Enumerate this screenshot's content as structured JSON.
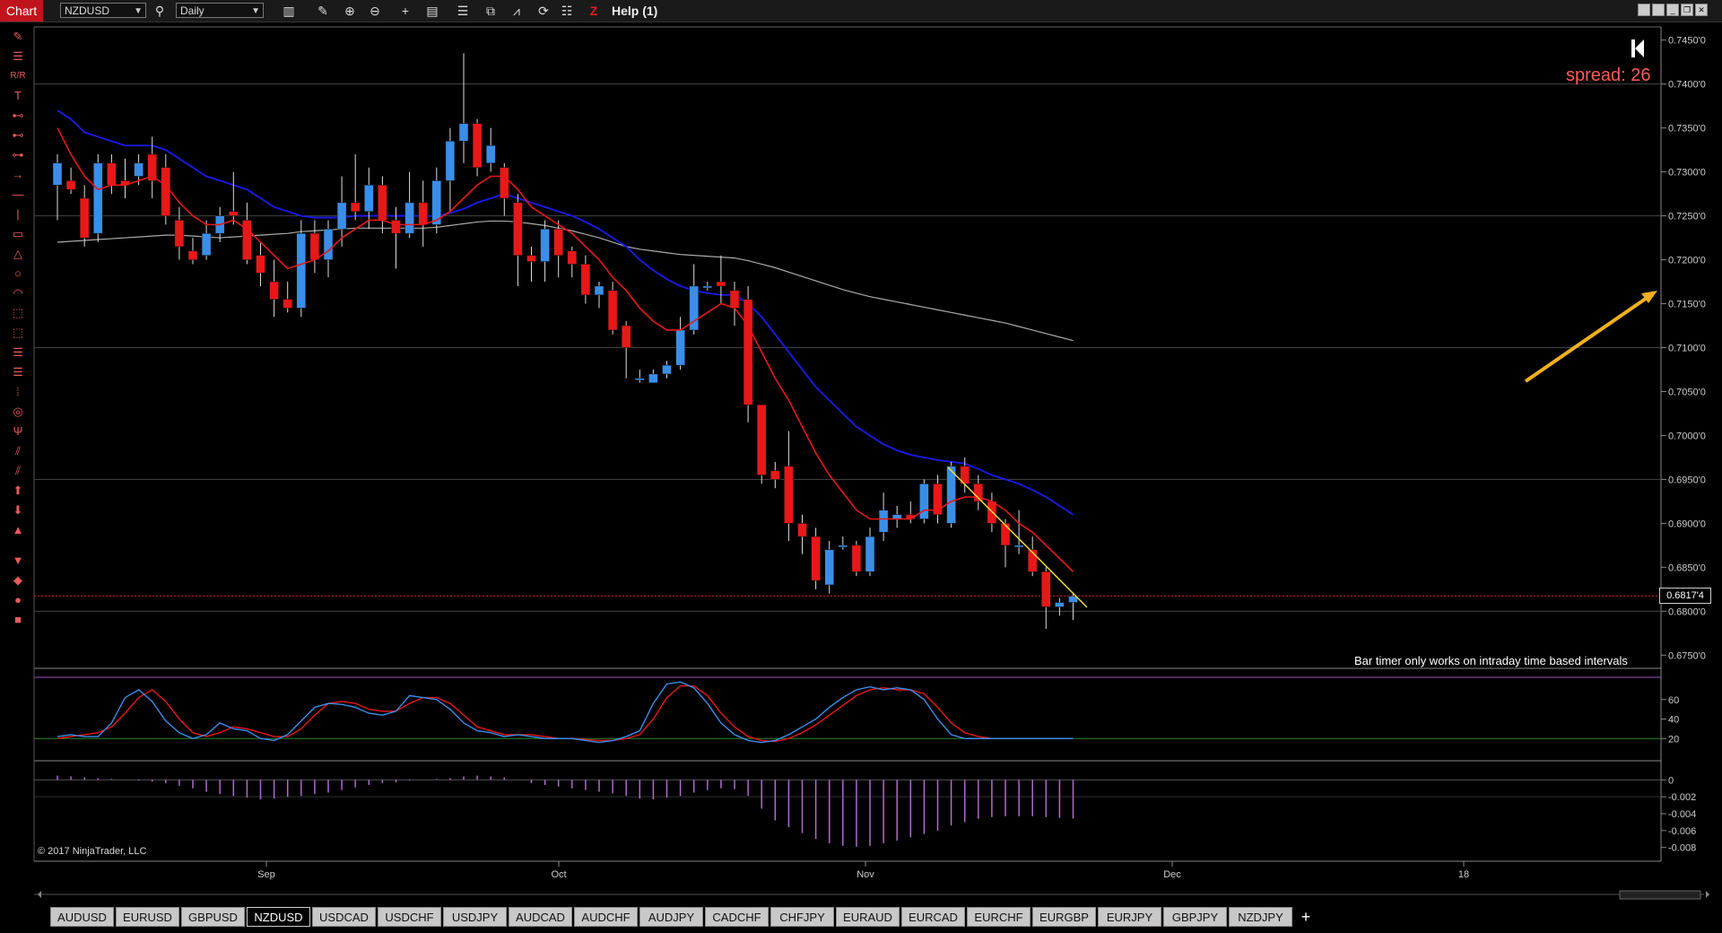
{
  "toolbar": {
    "chart_label": "Chart",
    "instrument": "NZDUSD",
    "interval": "Daily",
    "help_label": "Help (1)"
  },
  "overlay": {
    "spread": "spread: 26",
    "bar_timer_message": "Bar timer only works on intraday time based intervals",
    "copyright": "© 2017 NinjaTrader, LLC",
    "last_price": "0.6817'4"
  },
  "price_axis_labels": [
    "0.7450'0",
    "0.7400'0",
    "0.7350'0",
    "0.7300'0",
    "0.7250'0",
    "0.7200'0",
    "0.7150'0",
    "0.7100'0",
    "0.7050'0",
    "0.7000'0",
    "0.6950'0",
    "0.6900'0",
    "0.6850'0",
    "0.6800'0",
    "0.6750'0"
  ],
  "stoch_axis_labels": [
    "60",
    "40",
    "20"
  ],
  "macd_axis_labels": [
    "0",
    "-0.002",
    "-0.004",
    "-0.006",
    "-0.008"
  ],
  "time_axis_labels": [
    "Sep",
    "Oct",
    "Nov",
    "Dec",
    "18"
  ],
  "tabs": [
    "AUDUSD",
    "EURUSD",
    "GBPUSD",
    "NZDUSD",
    "USDCAD",
    "USDCHF",
    "USDJPY",
    "AUDCAD",
    "AUDCHF",
    "AUDJPY",
    "CADCHF",
    "CHFJPY",
    "EURAUD",
    "EURCAD",
    "EURCHF",
    "EURGBP",
    "EURJPY",
    "GBPJPY",
    "NZDJPY"
  ],
  "active_tab": "NZDUSD",
  "colors": {
    "up": "#3a8ee8",
    "down": "#e81818",
    "ema_fast": "#e81818",
    "ema_slow": "#1a1aee",
    "sma": "#aaaaaa",
    "stoch_k": "#3a8ee8",
    "stoch_d": "#e81818",
    "macd_hist": "#b06ad0",
    "last_price_line": "#e02020",
    "trendline": "#f0e040",
    "arrow": "#f0b020"
  },
  "chart_data": {
    "type": "candlestick",
    "instrument": "NZDUSD",
    "interval": "Daily",
    "ylim": [
      0.6735,
      0.7465
    ],
    "last_price": 0.68174,
    "candles": [
      [
        0.7285,
        0.731,
        0.7245,
        0.732
      ],
      [
        0.729,
        0.728,
        0.7275,
        0.7305
      ],
      [
        0.727,
        0.7225,
        0.7215,
        0.7285
      ],
      [
        0.723,
        0.731,
        0.722,
        0.732
      ],
      [
        0.731,
        0.7285,
        0.7275,
        0.732
      ],
      [
        0.729,
        0.7285,
        0.727,
        0.7315
      ],
      [
        0.7295,
        0.731,
        0.7285,
        0.732
      ],
      [
        0.732,
        0.729,
        0.727,
        0.734
      ],
      [
        0.7305,
        0.725,
        0.724,
        0.732
      ],
      [
        0.7245,
        0.7215,
        0.72,
        0.726
      ],
      [
        0.721,
        0.72,
        0.7195,
        0.7225
      ],
      [
        0.7205,
        0.723,
        0.72,
        0.7245
      ],
      [
        0.723,
        0.725,
        0.722,
        0.726
      ],
      [
        0.7255,
        0.725,
        0.724,
        0.73
      ],
      [
        0.7245,
        0.72,
        0.7195,
        0.7265
      ],
      [
        0.7205,
        0.7185,
        0.717,
        0.722
      ],
      [
        0.7175,
        0.7155,
        0.7135,
        0.72
      ],
      [
        0.7155,
        0.7145,
        0.714,
        0.7175
      ],
      [
        0.7145,
        0.723,
        0.7135,
        0.7245
      ],
      [
        0.723,
        0.72,
        0.7185,
        0.7245
      ],
      [
        0.72,
        0.7235,
        0.718,
        0.7245
      ],
      [
        0.7235,
        0.7265,
        0.7215,
        0.7295
      ],
      [
        0.7265,
        0.7255,
        0.7245,
        0.732
      ],
      [
        0.7255,
        0.7285,
        0.7235,
        0.7305
      ],
      [
        0.7285,
        0.7245,
        0.723,
        0.7295
      ],
      [
        0.7245,
        0.723,
        0.719,
        0.726
      ],
      [
        0.723,
        0.7265,
        0.7225,
        0.73
      ],
      [
        0.7265,
        0.724,
        0.7215,
        0.729
      ],
      [
        0.724,
        0.729,
        0.723,
        0.7305
      ],
      [
        0.729,
        0.7335,
        0.7255,
        0.735
      ],
      [
        0.7335,
        0.7355,
        0.731,
        0.7435
      ],
      [
        0.7355,
        0.7305,
        0.7295,
        0.736
      ],
      [
        0.731,
        0.733,
        0.73,
        0.735
      ],
      [
        0.7305,
        0.727,
        0.725,
        0.731
      ],
      [
        0.7265,
        0.7205,
        0.717,
        0.7275
      ],
      [
        0.7205,
        0.7198,
        0.7175,
        0.7215
      ],
      [
        0.7198,
        0.7235,
        0.7175,
        0.7245
      ],
      [
        0.7235,
        0.7205,
        0.718,
        0.7245
      ],
      [
        0.721,
        0.7195,
        0.718,
        0.7215
      ],
      [
        0.7195,
        0.716,
        0.715,
        0.7205
      ],
      [
        0.716,
        0.717,
        0.7145,
        0.7175
      ],
      [
        0.7165,
        0.712,
        0.7115,
        0.7175
      ],
      [
        0.7125,
        0.71,
        0.7065,
        0.713
      ],
      [
        0.7065,
        0.7065,
        0.706,
        0.7075
      ],
      [
        0.706,
        0.707,
        0.706,
        0.7075
      ],
      [
        0.707,
        0.708,
        0.7065,
        0.7085
      ],
      [
        0.708,
        0.712,
        0.7075,
        0.7135
      ],
      [
        0.712,
        0.717,
        0.7115,
        0.7195
      ],
      [
        0.717,
        0.717,
        0.7165,
        0.7175
      ],
      [
        0.7175,
        0.717,
        0.715,
        0.7205
      ],
      [
        0.7165,
        0.7145,
        0.7125,
        0.7175
      ],
      [
        0.7155,
        0.7035,
        0.7015,
        0.717
      ],
      [
        0.7035,
        0.6955,
        0.6945,
        0.7035
      ],
      [
        0.696,
        0.695,
        0.694,
        0.697
      ],
      [
        0.6965,
        0.69,
        0.688,
        0.7005
      ],
      [
        0.69,
        0.6885,
        0.6865,
        0.691
      ],
      [
        0.6885,
        0.6835,
        0.6825,
        0.6895
      ],
      [
        0.683,
        0.687,
        0.682,
        0.688
      ],
      [
        0.6875,
        0.6875,
        0.687,
        0.6885
      ],
      [
        0.6875,
        0.6845,
        0.684,
        0.688
      ],
      [
        0.6845,
        0.6885,
        0.684,
        0.6895
      ],
      [
        0.689,
        0.6915,
        0.688,
        0.6935
      ],
      [
        0.6905,
        0.691,
        0.6895,
        0.692
      ],
      [
        0.691,
        0.6905,
        0.69,
        0.6925
      ],
      [
        0.6905,
        0.6945,
        0.69,
        0.695
      ],
      [
        0.6945,
        0.691,
        0.69,
        0.6955
      ],
      [
        0.69,
        0.6965,
        0.6895,
        0.697
      ],
      [
        0.6965,
        0.6945,
        0.6935,
        0.6975
      ],
      [
        0.6945,
        0.6925,
        0.6915,
        0.6955
      ],
      [
        0.6925,
        0.69,
        0.689,
        0.6935
      ],
      [
        0.69,
        0.6875,
        0.685,
        0.6905
      ],
      [
        0.6875,
        0.6875,
        0.6865,
        0.6915
      ],
      [
        0.687,
        0.6845,
        0.684,
        0.6885
      ],
      [
        0.6845,
        0.6805,
        0.678,
        0.685
      ],
      [
        0.6805,
        0.681,
        0.6795,
        0.6815
      ],
      [
        0.681,
        0.6817,
        0.679,
        0.682
      ]
    ],
    "ema_fast": [
      0.735,
      0.732,
      0.7295,
      0.728,
      0.7285,
      0.7285,
      0.729,
      0.7295,
      0.7285,
      0.7265,
      0.725,
      0.724,
      0.724,
      0.7245,
      0.7235,
      0.722,
      0.7205,
      0.719,
      0.7195,
      0.72,
      0.721,
      0.7225,
      0.7235,
      0.7245,
      0.7245,
      0.724,
      0.724,
      0.724,
      0.7245,
      0.7255,
      0.727,
      0.7285,
      0.7295,
      0.7295,
      0.728,
      0.726,
      0.725,
      0.724,
      0.723,
      0.7215,
      0.72,
      0.718,
      0.7165,
      0.7145,
      0.713,
      0.712,
      0.712,
      0.713,
      0.714,
      0.715,
      0.7145,
      0.7125,
      0.7095,
      0.7065,
      0.704,
      0.701,
      0.698,
      0.6955,
      0.6935,
      0.6915,
      0.6905,
      0.6905,
      0.6905,
      0.6905,
      0.6915,
      0.6915,
      0.6925,
      0.693,
      0.693,
      0.6925,
      0.6915,
      0.69,
      0.689,
      0.6875,
      0.686,
      0.6845
    ],
    "ema_slow": [
      0.737,
      0.736,
      0.7345,
      0.734,
      0.7335,
      0.733,
      0.733,
      0.733,
      0.7325,
      0.7315,
      0.7305,
      0.7295,
      0.729,
      0.7285,
      0.728,
      0.727,
      0.726,
      0.7255,
      0.725,
      0.7248,
      0.7248,
      0.7248,
      0.725,
      0.725,
      0.725,
      0.725,
      0.725,
      0.725,
      0.725,
      0.7253,
      0.7258,
      0.7265,
      0.727,
      0.7275,
      0.727,
      0.7265,
      0.726,
      0.7255,
      0.725,
      0.7243,
      0.7235,
      0.7225,
      0.7215,
      0.72,
      0.7188,
      0.7178,
      0.717,
      0.7165,
      0.7162,
      0.716,
      0.716,
      0.715,
      0.7135,
      0.7115,
      0.7095,
      0.7075,
      0.7055,
      0.704,
      0.7025,
      0.701,
      0.7,
      0.699,
      0.6983,
      0.6978,
      0.6975,
      0.6972,
      0.697,
      0.6968,
      0.6962,
      0.6955,
      0.695,
      0.6945,
      0.6938,
      0.693,
      0.692,
      0.691
    ],
    "sma": [
      0.722,
      0.7221,
      0.7222,
      0.7223,
      0.7224,
      0.7225,
      0.7226,
      0.7227,
      0.7228,
      0.7228,
      0.7227,
      0.7226,
      0.7225,
      0.7226,
      0.7227,
      0.7228,
      0.7229,
      0.723,
      0.7232,
      0.7233,
      0.7234,
      0.7235,
      0.7236,
      0.7236,
      0.7236,
      0.7236,
      0.7236,
      0.7236,
      0.7237,
      0.7239,
      0.7241,
      0.7243,
      0.7244,
      0.7244,
      0.7243,
      0.7241,
      0.7239,
      0.7236,
      0.7233,
      0.7229,
      0.7225,
      0.722,
      0.7215,
      0.7212,
      0.721,
      0.7208,
      0.7206,
      0.7205,
      0.7204,
      0.7203,
      0.7202,
      0.7199,
      0.7195,
      0.7191,
      0.7186,
      0.7181,
      0.7176,
      0.7171,
      0.7166,
      0.7162,
      0.7158,
      0.7155,
      0.7152,
      0.7149,
      0.7146,
      0.7143,
      0.714,
      0.7137,
      0.7134,
      0.7131,
      0.7128,
      0.7124,
      0.712,
      0.7116,
      0.7112,
      0.7108
    ],
    "stoch_k": [
      22,
      24,
      22,
      22,
      36,
      62,
      70,
      58,
      38,
      26,
      20,
      24,
      36,
      30,
      28,
      20,
      18,
      24,
      38,
      52,
      56,
      55,
      52,
      46,
      44,
      48,
      64,
      62,
      60,
      50,
      36,
      28,
      26,
      22,
      24,
      22,
      20,
      20,
      20,
      18,
      16,
      18,
      22,
      28,
      56,
      76,
      78,
      72,
      56,
      36,
      24,
      18,
      16,
      18,
      24,
      32,
      40,
      52,
      62,
      70,
      73,
      70,
      72,
      70,
      60,
      40,
      24,
      20,
      20,
      20,
      20,
      20,
      20,
      20,
      20,
      20
    ],
    "stoch_d": [
      20,
      22,
      24,
      26,
      32,
      46,
      62,
      70,
      58,
      40,
      26,
      22,
      26,
      32,
      30,
      26,
      22,
      22,
      30,
      44,
      56,
      58,
      56,
      50,
      48,
      48,
      56,
      62,
      62,
      56,
      44,
      32,
      28,
      24,
      24,
      24,
      22,
      20,
      20,
      19,
      18,
      18,
      20,
      24,
      40,
      62,
      74,
      74,
      64,
      46,
      32,
      22,
      18,
      17,
      20,
      26,
      34,
      44,
      54,
      64,
      70,
      72,
      70,
      70,
      66,
      52,
      36,
      26,
      22,
      20,
      20,
      20,
      20,
      20,
      20,
      20
    ],
    "macd_hist": [
      0.0005,
      0.0004,
      0.0003,
      0.0002,
      0.0001,
      0.0,
      -0.0001,
      -0.0002,
      -0.0004,
      -0.0007,
      -0.001,
      -0.0014,
      -0.0017,
      -0.0019,
      -0.0021,
      -0.0023,
      -0.0022,
      -0.002,
      -0.0019,
      -0.0017,
      -0.0015,
      -0.0012,
      -0.0009,
      -0.0006,
      -0.0004,
      -0.0003,
      -0.0001,
      0.0,
      0.0001,
      0.0002,
      0.0004,
      0.0005,
      0.0004,
      0.0003,
      0.0,
      -0.0004,
      -0.0006,
      -0.0008,
      -0.001,
      -0.0012,
      -0.0014,
      -0.0016,
      -0.0019,
      -0.0022,
      -0.0023,
      -0.0021,
      -0.0019,
      -0.0015,
      -0.0012,
      -0.001,
      -0.0011,
      -0.0019,
      -0.0034,
      -0.0048,
      -0.0056,
      -0.0063,
      -0.007,
      -0.0075,
      -0.0078,
      -0.0079,
      -0.0078,
      -0.0075,
      -0.0072,
      -0.0068,
      -0.0064,
      -0.006,
      -0.0054,
      -0.005,
      -0.0046,
      -0.0044,
      -0.0043,
      -0.0043,
      -0.0043,
      -0.0044,
      -0.0045,
      -0.0046
    ]
  }
}
